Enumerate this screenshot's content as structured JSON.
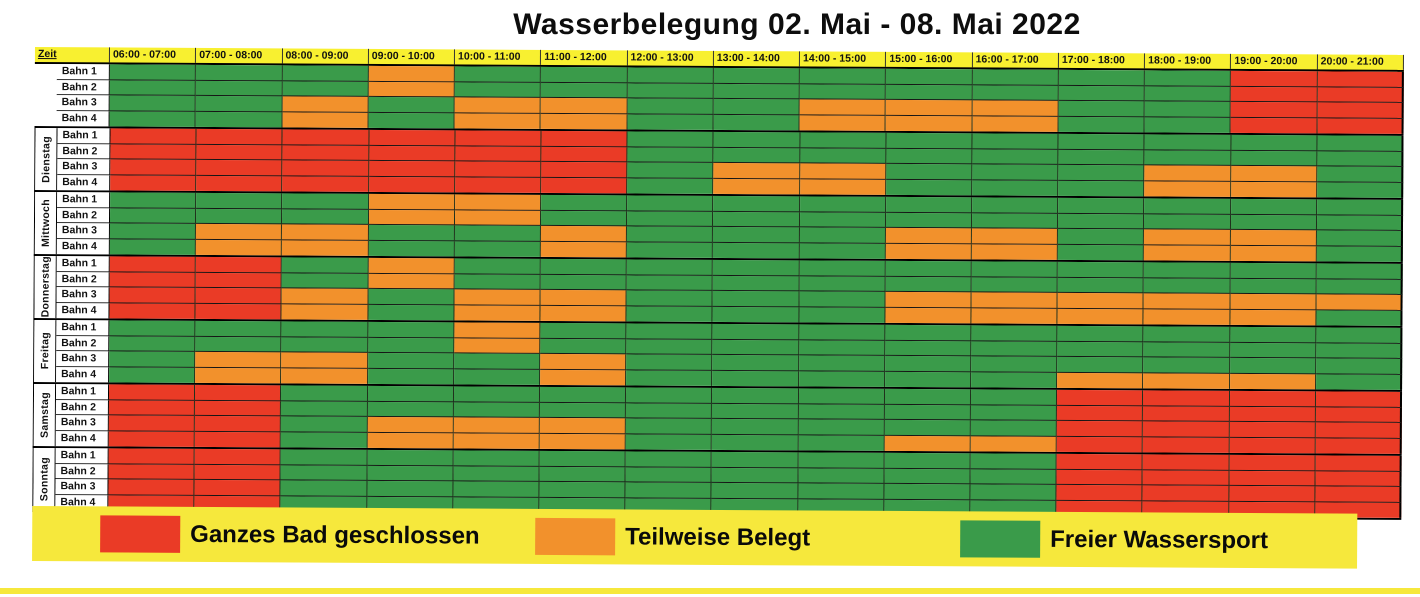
{
  "title": "Wasserbelegung 02. Mai - 08. Mai 2022",
  "colors": {
    "closed": "#ea3b26",
    "partial": "#f2912c",
    "free": "#3a9b4a",
    "header_bg": "#f8f030",
    "legend_bg": "#f6e83c"
  },
  "cell_codes": {
    "G": "free",
    "O": "partial",
    "R": "closed"
  },
  "header": {
    "zeit_label": "Zeit",
    "time_slots": [
      "06:00 - 07:00",
      "07:00 - 08:00",
      "08:00 - 09:00",
      "09:00 - 10:00",
      "10:00 - 11:00",
      "11:00 - 12:00",
      "12:00 - 13:00",
      "13:00 - 14:00",
      "14:00 - 15:00",
      "15:00 - 16:00",
      "16:00 - 17:00",
      "17:00 - 18:00",
      "18:00 - 19:00",
      "19:00 - 20:00",
      "20:00 - 21:00"
    ]
  },
  "days": [
    {
      "label": "",
      "lanes": [
        {
          "label": "Bahn 1",
          "cells": "GGGOGGGGGGGGGRR"
        },
        {
          "label": "Bahn 2",
          "cells": "GGGOGGGGGGGGGRR"
        },
        {
          "label": "Bahn 3",
          "cells": "GGOGOOGGOOOGGRR"
        },
        {
          "label": "Bahn 4",
          "cells": "GGOGOOGGOOOGGRR"
        }
      ]
    },
    {
      "label": "Dienstag",
      "lanes": [
        {
          "label": "Bahn 1",
          "cells": "RRRRRRGGGGGGGGG"
        },
        {
          "label": "Bahn 2",
          "cells": "RRRRRRGGGGGGGGG"
        },
        {
          "label": "Bahn 3",
          "cells": "RRRRRRGOOGGGOOG"
        },
        {
          "label": "Bahn 4",
          "cells": "RRRRRRGOOGGGOOG"
        }
      ]
    },
    {
      "label": "Mittwoch",
      "lanes": [
        {
          "label": "Bahn 1",
          "cells": "GGGOOGGGGGGGGGG"
        },
        {
          "label": "Bahn 2",
          "cells": "GGGOOGGGGGGGGGG"
        },
        {
          "label": "Bahn 3",
          "cells": "GOOGGOGGGOOGOOG"
        },
        {
          "label": "Bahn 4",
          "cells": "GOOGGOGGGOOGOOG"
        }
      ]
    },
    {
      "label": "Donnerstag",
      "lanes": [
        {
          "label": "Bahn 1",
          "cells": "RRGOGGGGGGGGGGG"
        },
        {
          "label": "Bahn 2",
          "cells": "RRGOGGGGGGGGGGG"
        },
        {
          "label": "Bahn 3",
          "cells": "RROGOOGGGOOOOOO"
        },
        {
          "label": "Bahn 4",
          "cells": "RROGOOGGGOOOOOG"
        }
      ]
    },
    {
      "label": "Freitag",
      "lanes": [
        {
          "label": "Bahn 1",
          "cells": "GGGGOGGGGGGGGGG"
        },
        {
          "label": "Bahn 2",
          "cells": "GGGGOGGGGGGGGGG"
        },
        {
          "label": "Bahn 3",
          "cells": "GOOGGOGGGGGGGGG"
        },
        {
          "label": "Bahn 4",
          "cells": "GOOGGOGGGGGOOOG"
        }
      ]
    },
    {
      "label": "Samstag",
      "lanes": [
        {
          "label": "Bahn 1",
          "cells": "RRGGGGGGGGGRRRR"
        },
        {
          "label": "Bahn 2",
          "cells": "RRGGGGGGGGGRRRR"
        },
        {
          "label": "Bahn 3",
          "cells": "RRGOOOGGGGGRRRR"
        },
        {
          "label": "Bahn 4",
          "cells": "RRGOOOGGGOORRRR"
        }
      ]
    },
    {
      "label": "Sonntag",
      "lanes": [
        {
          "label": "Bahn 1",
          "cells": "RRGGGGGGGGGRRRR"
        },
        {
          "label": "Bahn 2",
          "cells": "RRGGGGGGGGGRRRR"
        },
        {
          "label": "Bahn 3",
          "cells": "RRGGGGGGGGGRRRR"
        },
        {
          "label": "Bahn 4",
          "cells": "RRGGGGGGGGGRRRR"
        }
      ]
    }
  ],
  "legend": {
    "items": [
      {
        "key": "closed",
        "label": "Ganzes Bad geschlossen"
      },
      {
        "key": "partial",
        "label": "Teilweise Belegt"
      },
      {
        "key": "free",
        "label": "Freier Wassersport"
      }
    ]
  }
}
